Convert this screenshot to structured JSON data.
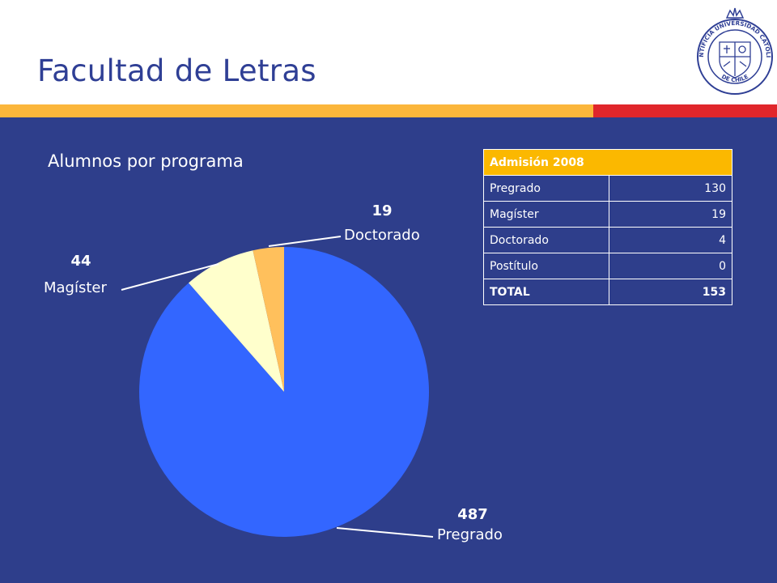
{
  "slide": {
    "title": "Facultad de Letras",
    "logo_text": [
      "PONTIFICIA UNIVERSIDAD CATÓLICA",
      "DE CHILE"
    ]
  },
  "colors": {
    "header_bg": "#ffffff",
    "title": "#2f3f95",
    "band_orange": "#fbb63b",
    "band_red": "#e0262b",
    "body_bg": "#2e3e8b",
    "table_header": "#fbb800"
  },
  "chart_data": {
    "type": "pie",
    "title": "Alumnos por programa",
    "slices": [
      {
        "label": "Pregrado",
        "value": 487,
        "value_label": "487",
        "color": "#3366ff"
      },
      {
        "label": "Magíster",
        "value": 44,
        "value_label": "44",
        "color": "#ffffcc"
      },
      {
        "label": "Doctorado",
        "value": 19,
        "value_label": "19",
        "color": "#ffc05c"
      }
    ],
    "start": "12 o'clock",
    "direction": "clockwise"
  },
  "table": {
    "header": "Admisión 2008",
    "rows": [
      {
        "label": "Pregrado",
        "value": "130"
      },
      {
        "label": "Magíster",
        "value": "19"
      },
      {
        "label": "Doctorado",
        "value": "4"
      },
      {
        "label": "Postítulo",
        "value": "0"
      }
    ],
    "total": {
      "label": "TOTAL",
      "value": "153"
    }
  }
}
